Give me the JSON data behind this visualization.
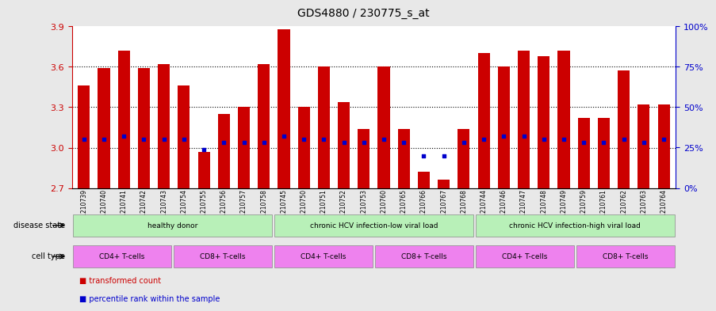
{
  "title": "GDS4880 / 230775_s_at",
  "samples": [
    "GSM1210739",
    "GSM1210740",
    "GSM1210741",
    "GSM1210742",
    "GSM1210743",
    "GSM1210754",
    "GSM1210755",
    "GSM1210756",
    "GSM1210757",
    "GSM1210758",
    "GSM1210745",
    "GSM1210750",
    "GSM1210751",
    "GSM1210752",
    "GSM1210753",
    "GSM1210760",
    "GSM1210765",
    "GSM1210766",
    "GSM1210767",
    "GSM1210768",
    "GSM1210744",
    "GSM1210746",
    "GSM1210747",
    "GSM1210748",
    "GSM1210749",
    "GSM1210759",
    "GSM1210761",
    "GSM1210762",
    "GSM1210763",
    "GSM1210764"
  ],
  "bar_values": [
    3.46,
    3.59,
    3.72,
    3.59,
    3.62,
    3.46,
    2.97,
    3.25,
    3.3,
    3.62,
    3.88,
    3.3,
    3.6,
    3.34,
    3.14,
    3.6,
    3.14,
    2.82,
    2.76,
    3.14,
    3.7,
    3.6,
    3.72,
    3.68,
    3.72,
    3.22,
    3.22,
    3.57,
    3.32,
    3.32
  ],
  "percentile_values": [
    30,
    30,
    32,
    30,
    30,
    30,
    24,
    28,
    28,
    28,
    32,
    30,
    30,
    28,
    28,
    30,
    28,
    20,
    20,
    28,
    30,
    32,
    32,
    30,
    30,
    28,
    28,
    30,
    28,
    30
  ],
  "y_min": 2.7,
  "y_max": 3.9,
  "y_ticks": [
    2.7,
    3.0,
    3.3,
    3.6,
    3.9
  ],
  "right_y_ticks": [
    0,
    25,
    50,
    75,
    100
  ],
  "right_y_labels": [
    "0%",
    "25%",
    "50%",
    "75%",
    "100%"
  ],
  "bar_color": "#cc0000",
  "percentile_color": "#0000cc",
  "axis_color": "#cc0000",
  "right_axis_color": "#0000cc",
  "background_color": "#f0f0f0",
  "plot_bg_color": "#ffffff",
  "disease_state_groups": [
    {
      "label": "healthy donor",
      "start": 0,
      "end": 9,
      "color": "#90ee90"
    },
    {
      "label": "chronic HCV infection-low viral load",
      "start": 10,
      "end": 19,
      "color": "#90ee90"
    },
    {
      "label": "chronic HCV infection-high viral load",
      "start": 20,
      "end": 29,
      "color": "#90ee90"
    }
  ],
  "cell_type_groups": [
    {
      "label": "CD4+ T-cells",
      "start": 0,
      "end": 4,
      "color": "#da70d6"
    },
    {
      "label": "CD8+ T-cells",
      "start": 5,
      "end": 9,
      "color": "#da70d6"
    },
    {
      "label": "CD4+ T-cells",
      "start": 10,
      "end": 14,
      "color": "#da70d6"
    },
    {
      "label": "CD8+ T-cells",
      "start": 15,
      "end": 19,
      "color": "#da70d6"
    },
    {
      "label": "CD4+ T-cells",
      "start": 20,
      "end": 24,
      "color": "#da70d6"
    },
    {
      "label": "CD8+ T-cells",
      "start": 25,
      "end": 29,
      "color": "#da70d6"
    }
  ],
  "disease_state_label": "disease state",
  "cell_type_label": "cell type",
  "legend_transformed": "transformed count",
  "legend_percentile": "percentile rank within the sample"
}
